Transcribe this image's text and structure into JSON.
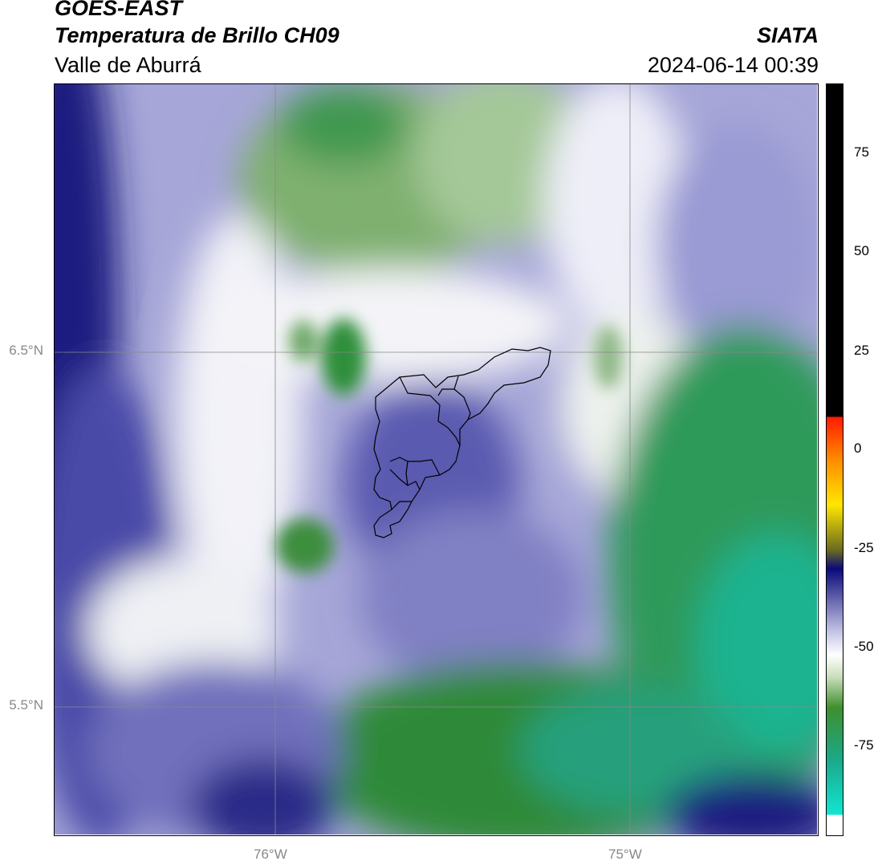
{
  "header": {
    "satellite": "GOES-EAST",
    "product": "Temperatura de Brillo CH09",
    "region": "Valle de Aburrá",
    "institution": "SIATA",
    "datetime": "2024-06-14 00:39"
  },
  "map": {
    "lat_ticks": [
      "6.5°N",
      "5.5°N"
    ],
    "lon_ticks": [
      "76°W",
      "75°W"
    ],
    "overlay": "Valle de Aburrá municipal boundaries"
  },
  "colorbar": {
    "ticks": [
      "75",
      "50",
      "25",
      "0",
      "-25",
      "-50",
      "-75"
    ],
    "range": [
      -95,
      90
    ],
    "colors": {
      "black": "#000000",
      "red": "#ff1a00",
      "orange": "#ff8c00",
      "yellow": "#ffe600",
      "olive": "#6b6b20",
      "navy": "#0a0a7a",
      "lavender": "#c6c6e6",
      "white": "#ffffff",
      "light_green": "#c7ddb8",
      "green": "#3f8f2e",
      "teal": "#1aa98a",
      "cyan": "#12e6d2"
    }
  }
}
